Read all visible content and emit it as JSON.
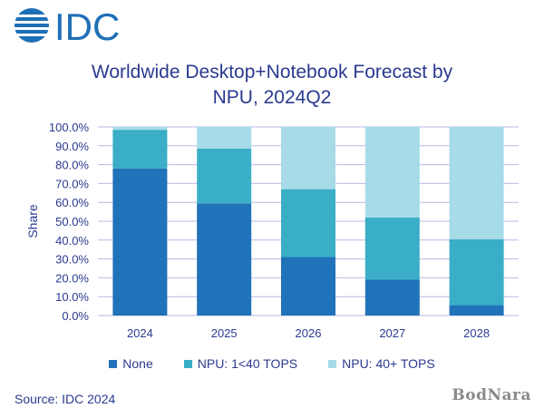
{
  "brand": {
    "logo_text": "IDC"
  },
  "title_lines": [
    "Worldwide Desktop+Notebook Forecast by",
    "NPU, 2024Q2"
  ],
  "source": "Source: IDC 2024",
  "watermark": "BodNara",
  "chart_data": {
    "type": "bar",
    "stacked": true,
    "categories": [
      "2024",
      "2025",
      "2026",
      "2027",
      "2028"
    ],
    "series": [
      {
        "name": "None",
        "color": "#2072b9",
        "values": [
          78,
          59.5,
          31,
          19,
          5.5
        ]
      },
      {
        "name": "NPU: 1<40 TOPS",
        "color": "#3aaec6",
        "values": [
          20.5,
          29,
          36,
          33,
          35
        ]
      },
      {
        "name": "NPU: 40+ TOPS",
        "color": "#a7dbe8",
        "values": [
          1.5,
          11.5,
          33,
          48,
          59.5
        ]
      }
    ],
    "ylabel": "Share",
    "ylim": [
      0,
      100
    ],
    "yticks": [
      "0.0%",
      "10.0%",
      "20.0%",
      "30.0%",
      "40.0%",
      "50.0%",
      "60.0%",
      "70.0%",
      "80.0%",
      "90.0%",
      "100.0%"
    ],
    "grid": true,
    "legend_position": "bottom"
  }
}
